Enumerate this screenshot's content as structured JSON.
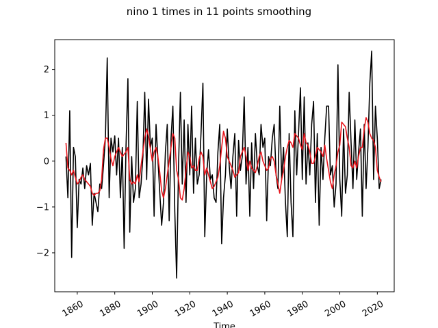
{
  "chart_data": {
    "type": "line",
    "title": "nino 1 times in 11 points smoothing",
    "xlabel": "Time",
    "ylabel": "",
    "xlim": [
      1848,
      2029
    ],
    "ylim": [
      -2.85,
      2.65
    ],
    "x_ticks": [
      1860,
      1880,
      1900,
      1920,
      1940,
      1960,
      1980,
      2000,
      2020
    ],
    "y_ticks": [
      -2,
      -1,
      0,
      1,
      2
    ],
    "grid": false,
    "series": [
      {
        "color": "#000000",
        "x": [
          1854,
          1855,
          1856,
          1857,
          1858,
          1859,
          1860,
          1861,
          1862,
          1863,
          1864,
          1865,
          1866,
          1867,
          1868,
          1869,
          1870,
          1871,
          1872,
          1873,
          1874,
          1875,
          1876,
          1877,
          1878,
          1879,
          1880,
          1881,
          1882,
          1883,
          1884,
          1885,
          1886,
          1887,
          1888,
          1889,
          1890,
          1891,
          1892,
          1893,
          1894,
          1895,
          1896,
          1897,
          1898,
          1899,
          1900,
          1901,
          1902,
          1903,
          1904,
          1905,
          1906,
          1907,
          1908,
          1909,
          1910,
          1911,
          1912,
          1913,
          1914,
          1915,
          1916,
          1917,
          1918,
          1919,
          1920,
          1921,
          1922,
          1923,
          1924,
          1925,
          1926,
          1927,
          1928,
          1929,
          1930,
          1931,
          1932,
          1933,
          1934,
          1935,
          1936,
          1937,
          1938,
          1939,
          1940,
          1941,
          1942,
          1943,
          1944,
          1945,
          1946,
          1947,
          1948,
          1949,
          1950,
          1951,
          1952,
          1953,
          1954,
          1955,
          1956,
          1957,
          1958,
          1959,
          1960,
          1961,
          1962,
          1963,
          1964,
          1965,
          1966,
          1967,
          1968,
          1969,
          1970,
          1971,
          1972,
          1973,
          1974,
          1975,
          1976,
          1977,
          1978,
          1979,
          1980,
          1981,
          1982,
          1983,
          1984,
          1985,
          1986,
          1987,
          1988,
          1989,
          1990,
          1991,
          1992,
          1993,
          1994,
          1995,
          1996,
          1997,
          1998,
          1999,
          2000,
          2001,
          2002,
          2003,
          2004,
          2005,
          2006,
          2007,
          2008,
          2009,
          2010,
          2011,
          2012,
          2013,
          2014,
          2015,
          2016,
          2017,
          2018,
          2019,
          2020,
          2021,
          2022
        ],
        "y": [
          0.1,
          -0.8,
          1.1,
          -2.1,
          0.3,
          0.1,
          -1.45,
          -0.4,
          -0.5,
          -0.15,
          -0.6,
          -0.1,
          -0.3,
          -0.05,
          -1.4,
          -0.7,
          -0.9,
          -1.1,
          -0.5,
          -0.6,
          -0.1,
          0.5,
          2.25,
          -0.8,
          0.5,
          0.2,
          0.55,
          -0.3,
          0.5,
          -0.8,
          0.3,
          -1.9,
          0.3,
          1.8,
          -1.55,
          0.1,
          -0.9,
          -0.6,
          1.3,
          -0.8,
          -0.5,
          0.1,
          1.5,
          -0.4,
          1.35,
          0.3,
          0.5,
          -1.2,
          0.8,
          0.05,
          -0.7,
          -1.4,
          -0.9,
          0.2,
          0.8,
          -1.3,
          0.5,
          1.2,
          -1.1,
          -2.55,
          -0.1,
          1.5,
          -0.5,
          0.9,
          -0.9,
          0.8,
          -0.3,
          1.2,
          -0.7,
          0.5,
          -0.5,
          -0.3,
          0.6,
          1.7,
          -1.65,
          -0.3,
          0.25,
          -0.4,
          -0.3,
          -0.8,
          -0.9,
          0.2,
          0.8,
          -1.8,
          -0.8,
          -0.3,
          0.7,
          -0.1,
          -0.6,
          0.1,
          0.6,
          -1.2,
          0.45,
          -0.2,
          0.1,
          1.4,
          -0.5,
          0.3,
          -1.2,
          0.4,
          -0.6,
          0.6,
          -0.1,
          -0.3,
          0.8,
          0.3,
          0.5,
          -1.3,
          0.1,
          -0.1,
          0.5,
          0.8,
          -0.3,
          -0.6,
          1.2,
          -0.4,
          0.3,
          -0.9,
          -1.65,
          0.6,
          -0.9,
          -1.65,
          1.1,
          -0.3,
          0.6,
          1.6,
          -0.4,
          1.4,
          -0.5,
          0.4,
          -0.3,
          0.8,
          1.3,
          -0.9,
          0.6,
          -1.4,
          0.3,
          -0.4,
          0.5,
          1.2,
          1.2,
          -0.3,
          -0.1,
          -1.0,
          -0.5,
          2.1,
          -0.4,
          -1.2,
          0.7,
          -0.7,
          -0.3,
          1.5,
          0.4,
          -0.6,
          0.9,
          -0.4,
          0.2,
          0.7,
          -1.2,
          0.8,
          -0.6,
          0.3,
          1.7,
          2.4,
          -0.4,
          1.2,
          0.5,
          -0.6,
          -0.4
        ]
      },
      {
        "color": "#e8141b",
        "x": [
          1854,
          1855,
          1856,
          1857,
          1858,
          1859,
          1860,
          1861,
          1862,
          1863,
          1864,
          1865,
          1866,
          1867,
          1868,
          1869,
          1870,
          1871,
          1872,
          1873,
          1874,
          1875,
          1876,
          1877,
          1878,
          1879,
          1880,
          1881,
          1882,
          1883,
          1884,
          1885,
          1886,
          1887,
          1888,
          1889,
          1890,
          1891,
          1892,
          1893,
          1894,
          1895,
          1896,
          1897,
          1898,
          1899,
          1900,
          1901,
          1902,
          1903,
          1904,
          1905,
          1906,
          1907,
          1908,
          1909,
          1910,
          1911,
          1912,
          1913,
          1914,
          1915,
          1916,
          1917,
          1918,
          1919,
          1920,
          1921,
          1922,
          1923,
          1924,
          1925,
          1926,
          1927,
          1928,
          1929,
          1930,
          1931,
          1932,
          1933,
          1934,
          1935,
          1936,
          1937,
          1938,
          1939,
          1940,
          1941,
          1942,
          1943,
          1944,
          1945,
          1946,
          1947,
          1948,
          1949,
          1950,
          1951,
          1952,
          1953,
          1954,
          1955,
          1956,
          1957,
          1958,
          1959,
          1960,
          1961,
          1962,
          1963,
          1964,
          1965,
          1966,
          1967,
          1968,
          1969,
          1970,
          1971,
          1972,
          1973,
          1974,
          1975,
          1976,
          1977,
          1978,
          1979,
          1980,
          1981,
          1982,
          1983,
          1984,
          1985,
          1986,
          1987,
          1988,
          1989,
          1990,
          1991,
          1992,
          1993,
          1994,
          1995,
          1996,
          1997,
          1998,
          1999,
          2000,
          2001,
          2002,
          2003,
          2004,
          2005,
          2006,
          2007,
          2008,
          2009,
          2010,
          2011,
          2012,
          2013,
          2014,
          2015,
          2016,
          2017,
          2018,
          2019,
          2020,
          2021,
          2022
        ],
        "y": [
          0.4,
          -0.15,
          -0.2,
          -0.3,
          -0.2,
          -0.35,
          -0.5,
          -0.45,
          -0.35,
          -0.3,
          -0.4,
          -0.45,
          -0.5,
          -0.55,
          -0.7,
          -0.75,
          -0.7,
          -0.7,
          -0.65,
          -0.4,
          0.25,
          0.5,
          0.5,
          0.3,
          0.05,
          -0.1,
          0.1,
          0.2,
          0.3,
          0.2,
          0.1,
          0.15,
          0.2,
          0.3,
          -0.4,
          -0.5,
          -0.45,
          -0.5,
          -0.3,
          -0.45,
          -0.1,
          0.2,
          0.5,
          0.7,
          0.55,
          0.25,
          0.0,
          0.2,
          0.3,
          0.1,
          -0.25,
          -0.65,
          -0.8,
          -0.6,
          -0.3,
          0.0,
          0.3,
          0.6,
          0.5,
          -0.2,
          -0.4,
          -0.8,
          -0.85,
          -0.6,
          -0.2,
          0.2,
          0.1,
          -0.15,
          -0.1,
          -0.2,
          -0.2,
          0.05,
          0.2,
          0.1,
          -0.3,
          -0.15,
          -0.3,
          -0.45,
          -0.6,
          -0.55,
          -0.45,
          -0.35,
          -0.1,
          0.3,
          0.65,
          0.5,
          0.1,
          0.0,
          -0.1,
          -0.2,
          -0.35,
          -0.3,
          -0.25,
          0.1,
          0.2,
          0.3,
          0.1,
          -0.2,
          0.0,
          -0.15,
          -0.2,
          -0.25,
          -0.1,
          0.1,
          0.2,
          0.0,
          -0.1,
          -0.2,
          -0.15,
          0.05,
          0.1,
          0.0,
          -0.3,
          -0.5,
          -0.7,
          -0.4,
          -0.2,
          0.1,
          0.3,
          0.45,
          0.4,
          0.3,
          0.6,
          0.55,
          0.5,
          0.35,
          0.25,
          0.6,
          0.4,
          0.35,
          0.2,
          -0.05,
          -0.05,
          0.1,
          0.3,
          0.25,
          0.2,
          0.1,
          0.35,
          0.05,
          -0.2,
          -0.45,
          -0.6,
          -0.3,
          -0.1,
          0.2,
          0.35,
          0.85,
          0.8,
          0.75,
          0.5,
          0.3,
          -0.1,
          -0.15,
          0.0,
          -0.15,
          0.1,
          0.3,
          0.3,
          0.7,
          0.95,
          0.85,
          0.6,
          0.5,
          0.45,
          0.3,
          -0.2,
          -0.35,
          -0.45
        ]
      }
    ]
  }
}
